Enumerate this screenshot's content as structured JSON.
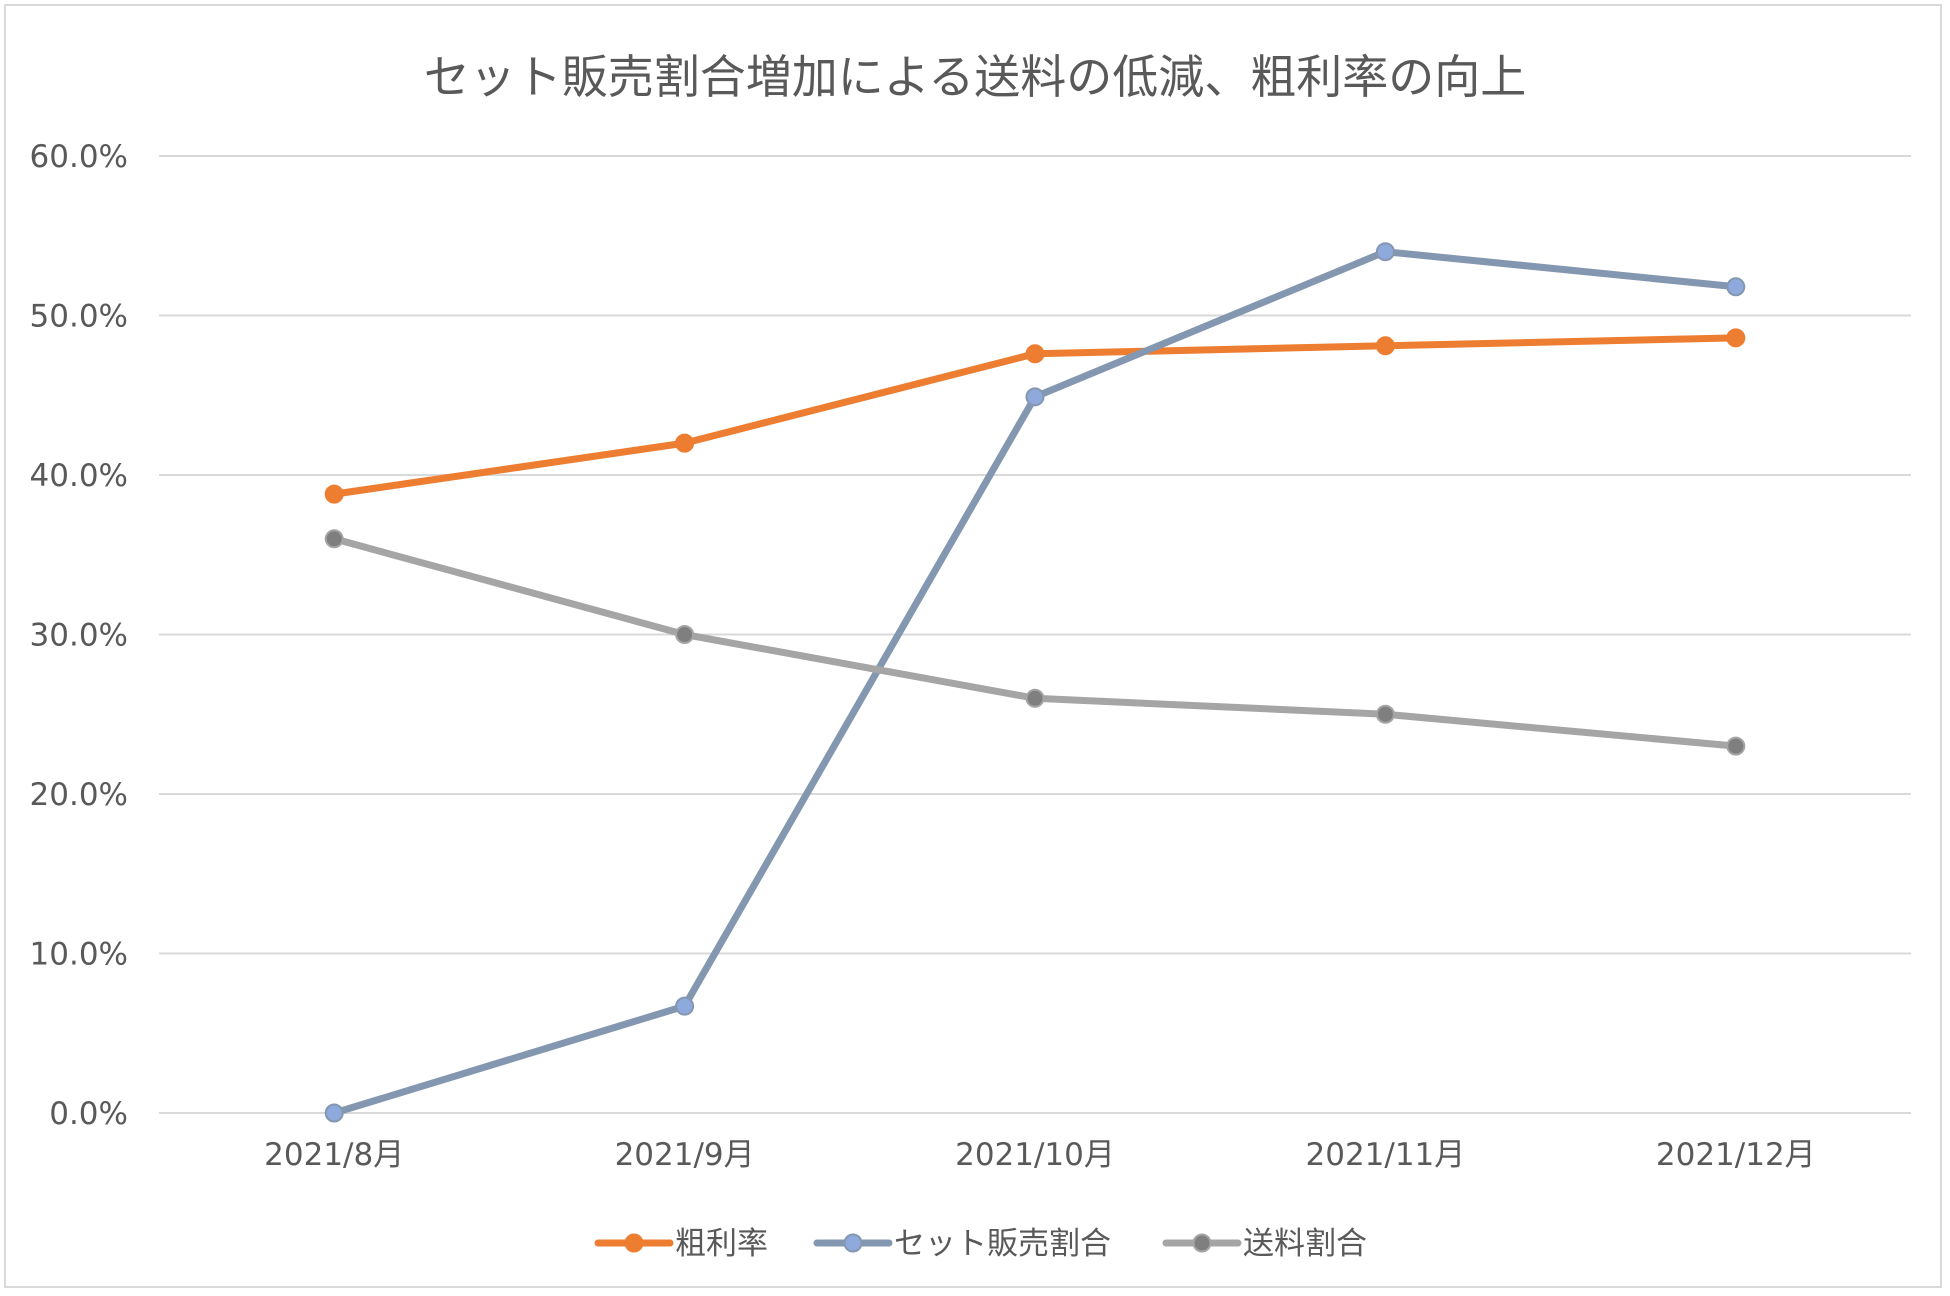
{
  "chart_data": {
    "type": "line",
    "title": "セット販売割合増加による送料の低減、粗利率の向上",
    "categories": [
      "2021/8月",
      "2021/9月",
      "2021/10月",
      "2021/11月",
      "2021/12月"
    ],
    "ylim": [
      0,
      60
    ],
    "yticks": [
      0,
      10,
      20,
      30,
      40,
      50,
      60
    ],
    "ytick_labels": [
      "0.0%",
      "10.0%",
      "20.0%",
      "30.0%",
      "40.0%",
      "50.0%",
      "60.0%"
    ],
    "xlabel": "",
    "ylabel": "",
    "grid": true,
    "legend_position": "bottom",
    "series": [
      {
        "name": "粗利率",
        "color": "#ED7D31",
        "marker_color": "#ED7D31",
        "values": [
          38.8,
          42.0,
          47.6,
          48.1,
          48.6
        ]
      },
      {
        "name": "セット販売割合",
        "color": "#8497B0",
        "marker_color": "#8EA9DB",
        "values": [
          0.0,
          6.7,
          44.9,
          54.0,
          51.8
        ]
      },
      {
        "name": "送料割合",
        "color": "#A5A5A5",
        "marker_color": "#7F7F7F",
        "values": [
          36.0,
          30.0,
          26.0,
          25.0,
          23.0
        ]
      }
    ]
  }
}
